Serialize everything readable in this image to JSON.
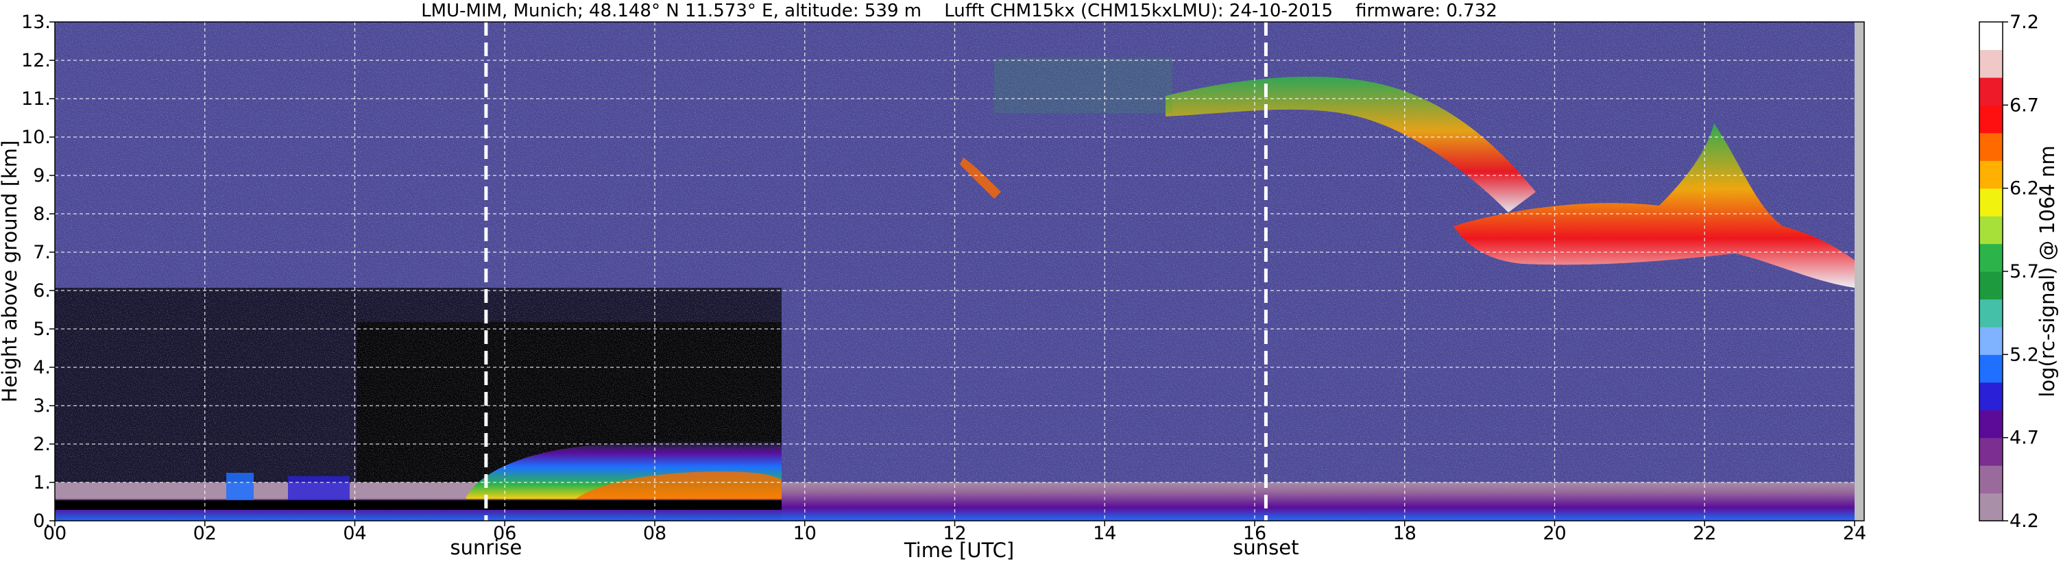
{
  "chart_data": {
    "type": "heatmap",
    "title": "LMU-MIM, Munich; 48.148° N 11.573° E, altitude: 539 m    Lufft CHM15kx (CHM15kxLMU): 24-10-2015    firmware: 0.732",
    "xlabel": "Time [UTC]",
    "ylabel": "Height above ground [km]",
    "xlim": [
      0,
      24
    ],
    "ylim": [
      0,
      13
    ],
    "x_ticks": [
      "00",
      "02",
      "04",
      "06",
      "08",
      "10",
      "12",
      "14",
      "16",
      "18",
      "20",
      "22",
      "24"
    ],
    "y_ticks": [
      "0.",
      "1.",
      "2.",
      "3.",
      "4.",
      "5.",
      "6.",
      "7.",
      "8.",
      "9.",
      "10.",
      "11.",
      "12.",
      "13."
    ],
    "grid": true,
    "events": [
      {
        "label": "sunrise",
        "time": 5.75
      },
      {
        "label": "sunset",
        "time": 16.15
      }
    ],
    "colorbar": {
      "label": "log(rc-signal) @ 1064 nm",
      "range": [
        4.2,
        7.2
      ],
      "ticks": [
        "4.2",
        "4.7",
        "5.2",
        "5.7",
        "6.2",
        "6.7",
        "7.2"
      ]
    },
    "features": [
      {
        "name": "aerosol layer (night)",
        "time": [
          2.3,
          5.6
        ],
        "height_km": [
          0.4,
          1.0
        ]
      },
      {
        "name": "boundary layer (day)",
        "time": [
          5.6,
          9.7
        ],
        "height_km": [
          0.3,
          2.1
        ]
      },
      {
        "name": "low aerosol layer",
        "time": [
          9.7,
          24
        ],
        "height_km": [
          0,
          1.1
        ]
      },
      {
        "name": "cirrus clouds",
        "time": [
          12,
          24
        ],
        "height_km": [
          6,
          12
        ]
      }
    ]
  },
  "colors": {
    "noise_background": "#4b4896",
    "colormap": [
      "#aa8fa8",
      "#9b6a9c",
      "#7c2f90",
      "#5b0b98",
      "#2a20d8",
      "#1f70ff",
      "#7fb2ff",
      "#45c0a8",
      "#1e9a3e",
      "#2cb44a",
      "#a8e03a",
      "#f2f20f",
      "#ffb000",
      "#ff6a00",
      "#ff1010",
      "#ee1a2a",
      "#f0c8c8",
      "#ffffff"
    ],
    "event_line": "#ffffff",
    "grid": "#ffffff"
  }
}
